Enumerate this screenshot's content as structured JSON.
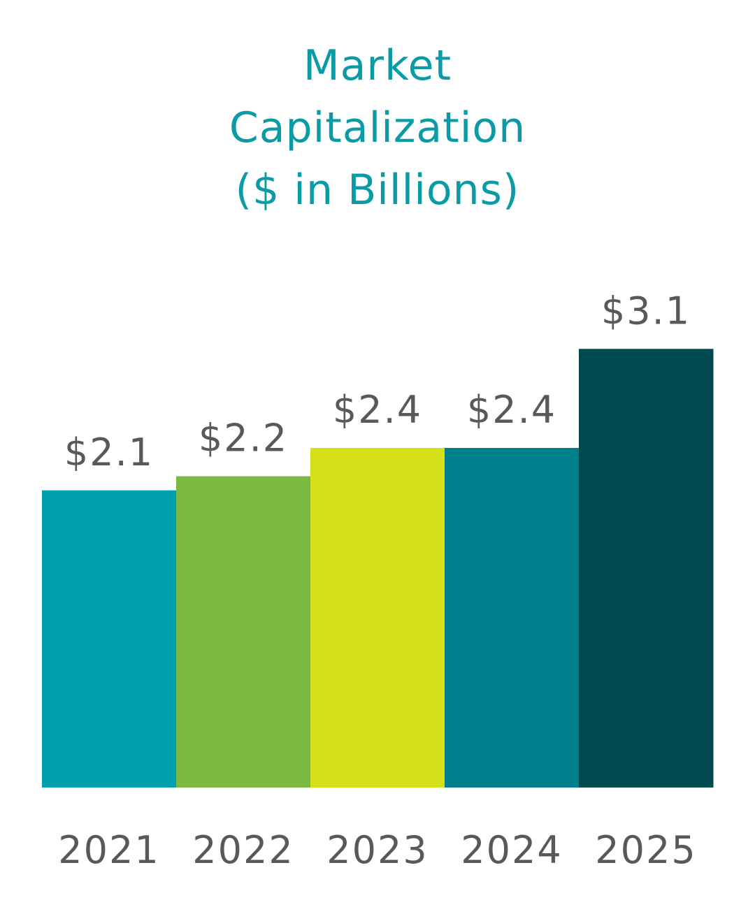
{
  "chart_data": {
    "type": "bar",
    "title": "Market Capitalization ($ in Billions)",
    "categories": [
      "2021",
      "2022",
      "2023",
      "2024",
      "2025"
    ],
    "values": [
      2.1,
      2.2,
      2.4,
      2.4,
      3.1
    ],
    "value_labels": [
      "$2.1",
      "$2.2",
      "$2.4",
      "$2.4",
      "$3.1"
    ],
    "colors": [
      "#009fad",
      "#7aba43",
      "#d5e019",
      "#007f8c",
      "#004a4f"
    ]
  }
}
